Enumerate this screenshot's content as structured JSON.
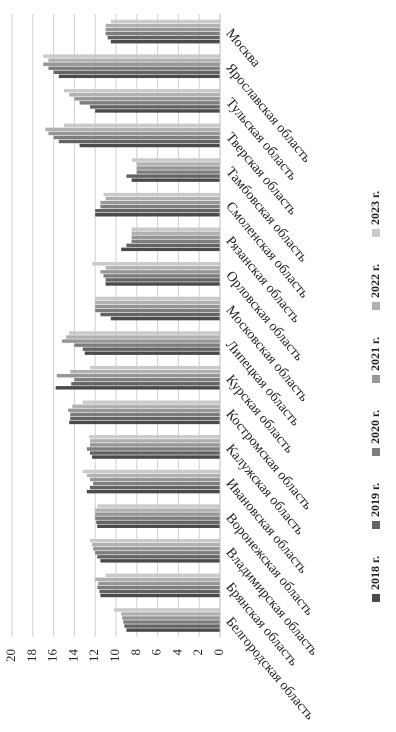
{
  "chart_data": {
    "type": "bar",
    "categories": [
      "Белгородская область",
      "Брянская область",
      "Владимирская область",
      "Воронежская область",
      "Ивановская область",
      "Калужская область",
      "Костромская область",
      "Курская область",
      "Липецкая область",
      "Московская область",
      "Орловская область",
      "Рязанская область",
      "Смоленская область",
      "Тамбовская область",
      "Тверская область",
      "Тульская область",
      "Ярославская область",
      "Москва"
    ],
    "series": [
      {
        "name": "2018 г.",
        "color": "#4a4a4a",
        "values": [
          9.0,
          11.5,
          11.5,
          11.8,
          12.8,
          12.3,
          14.5,
          15.8,
          13.0,
          10.5,
          11.0,
          9.5,
          12.0,
          8.5,
          13.5,
          12.0,
          15.5,
          10.5
        ]
      },
      {
        "name": "2019 г.",
        "color": "#636363",
        "values": [
          9.2,
          11.6,
          11.8,
          11.9,
          12.5,
          12.5,
          14.4,
          14.3,
          13.2,
          11.5,
          11.0,
          9.0,
          12.0,
          9.0,
          15.5,
          12.5,
          16.0,
          10.8
        ]
      },
      {
        "name": "2020 г.",
        "color": "#7d7d7d",
        "values": [
          9.3,
          11.8,
          12.0,
          12.0,
          12.2,
          12.8,
          14.4,
          14.0,
          14.0,
          12.0,
          11.2,
          8.5,
          11.5,
          8.0,
          16.0,
          13.5,
          16.5,
          11.0
        ]
      },
      {
        "name": "2021 г.",
        "color": "#969696",
        "values": [
          9.4,
          11.7,
          12.2,
          12.0,
          12.5,
          12.5,
          14.6,
          15.7,
          15.2,
          12.0,
          11.5,
          8.5,
          11.5,
          8.0,
          16.5,
          14.0,
          17.0,
          11.0
        ]
      },
      {
        "name": "2022 г.",
        "color": "#b0b0b0",
        "values": [
          9.5,
          12.0,
          12.3,
          12.0,
          12.8,
          12.5,
          14.2,
          14.4,
          14.8,
          12.0,
          11.0,
          8.5,
          11.0,
          8.0,
          16.8,
          14.5,
          16.5,
          11.0
        ]
      },
      {
        "name": "2023 г.",
        "color": "#cacaca",
        "values": [
          10.2,
          11.0,
          12.5,
          11.8,
          13.2,
          12.6,
          13.2,
          12.5,
          14.5,
          12.0,
          12.3,
          8.5,
          11.2,
          8.5,
          15.0,
          15.0,
          17.0,
          10.5
        ]
      }
    ],
    "ylim": [
      0,
      20
    ],
    "yticks": [
      0,
      2,
      4,
      6,
      8,
      10,
      12,
      14,
      16,
      18,
      20
    ],
    "grid": true,
    "legend": "bottom"
  }
}
